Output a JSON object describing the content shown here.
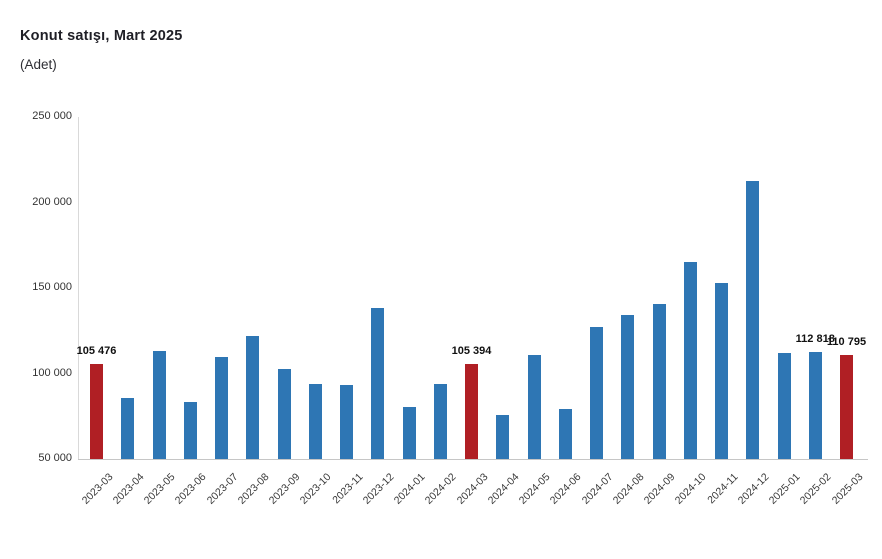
{
  "header": {
    "title": "Konut satışı, Mart 2025",
    "subtitle": "(Adet)"
  },
  "chart_data": {
    "type": "bar",
    "title": "Konut satışı, Mart 2025",
    "subtitle": "(Adet)",
    "xlabel": "",
    "ylabel": "",
    "ylim": [
      50000,
      250000
    ],
    "ytick_step": 50000,
    "yticks": [
      "250 000",
      "200 000",
      "150 000",
      "100 000",
      "50 000"
    ],
    "grid": "off",
    "legend": "none",
    "bar_color": "#2e76b4",
    "highlight_color": "#b01f24",
    "axis_color": "#d9d9d9",
    "categories": [
      "2023-03",
      "2023-04",
      "2023-05",
      "2023-06",
      "2023-07",
      "2023-08",
      "2023-09",
      "2023-10",
      "2023-11",
      "2023-12",
      "2024-01",
      "2024-02",
      "2024-03",
      "2024-04",
      "2024-05",
      "2024-06",
      "2024-07",
      "2024-08",
      "2024-09",
      "2024-10",
      "2024-11",
      "2024-12",
      "2025-01",
      "2025-02",
      "2025-03"
    ],
    "values": [
      105476,
      85652,
      113219,
      83636,
      109548,
      122091,
      102656,
      93761,
      93514,
      138577,
      80308,
      93902,
      105394,
      75569,
      110588,
      79313,
      127088,
      134155,
      140919,
      165138,
      153014,
      212637,
      112173,
      112818,
      110795
    ],
    "highlighted_indices": [
      0,
      12,
      24
    ],
    "data_labels": [
      {
        "index": 0,
        "text": "105 476"
      },
      {
        "index": 12,
        "text": "105 394"
      },
      {
        "index": 23,
        "text": "112 818"
      },
      {
        "index": 24,
        "text": "110 795"
      }
    ]
  }
}
